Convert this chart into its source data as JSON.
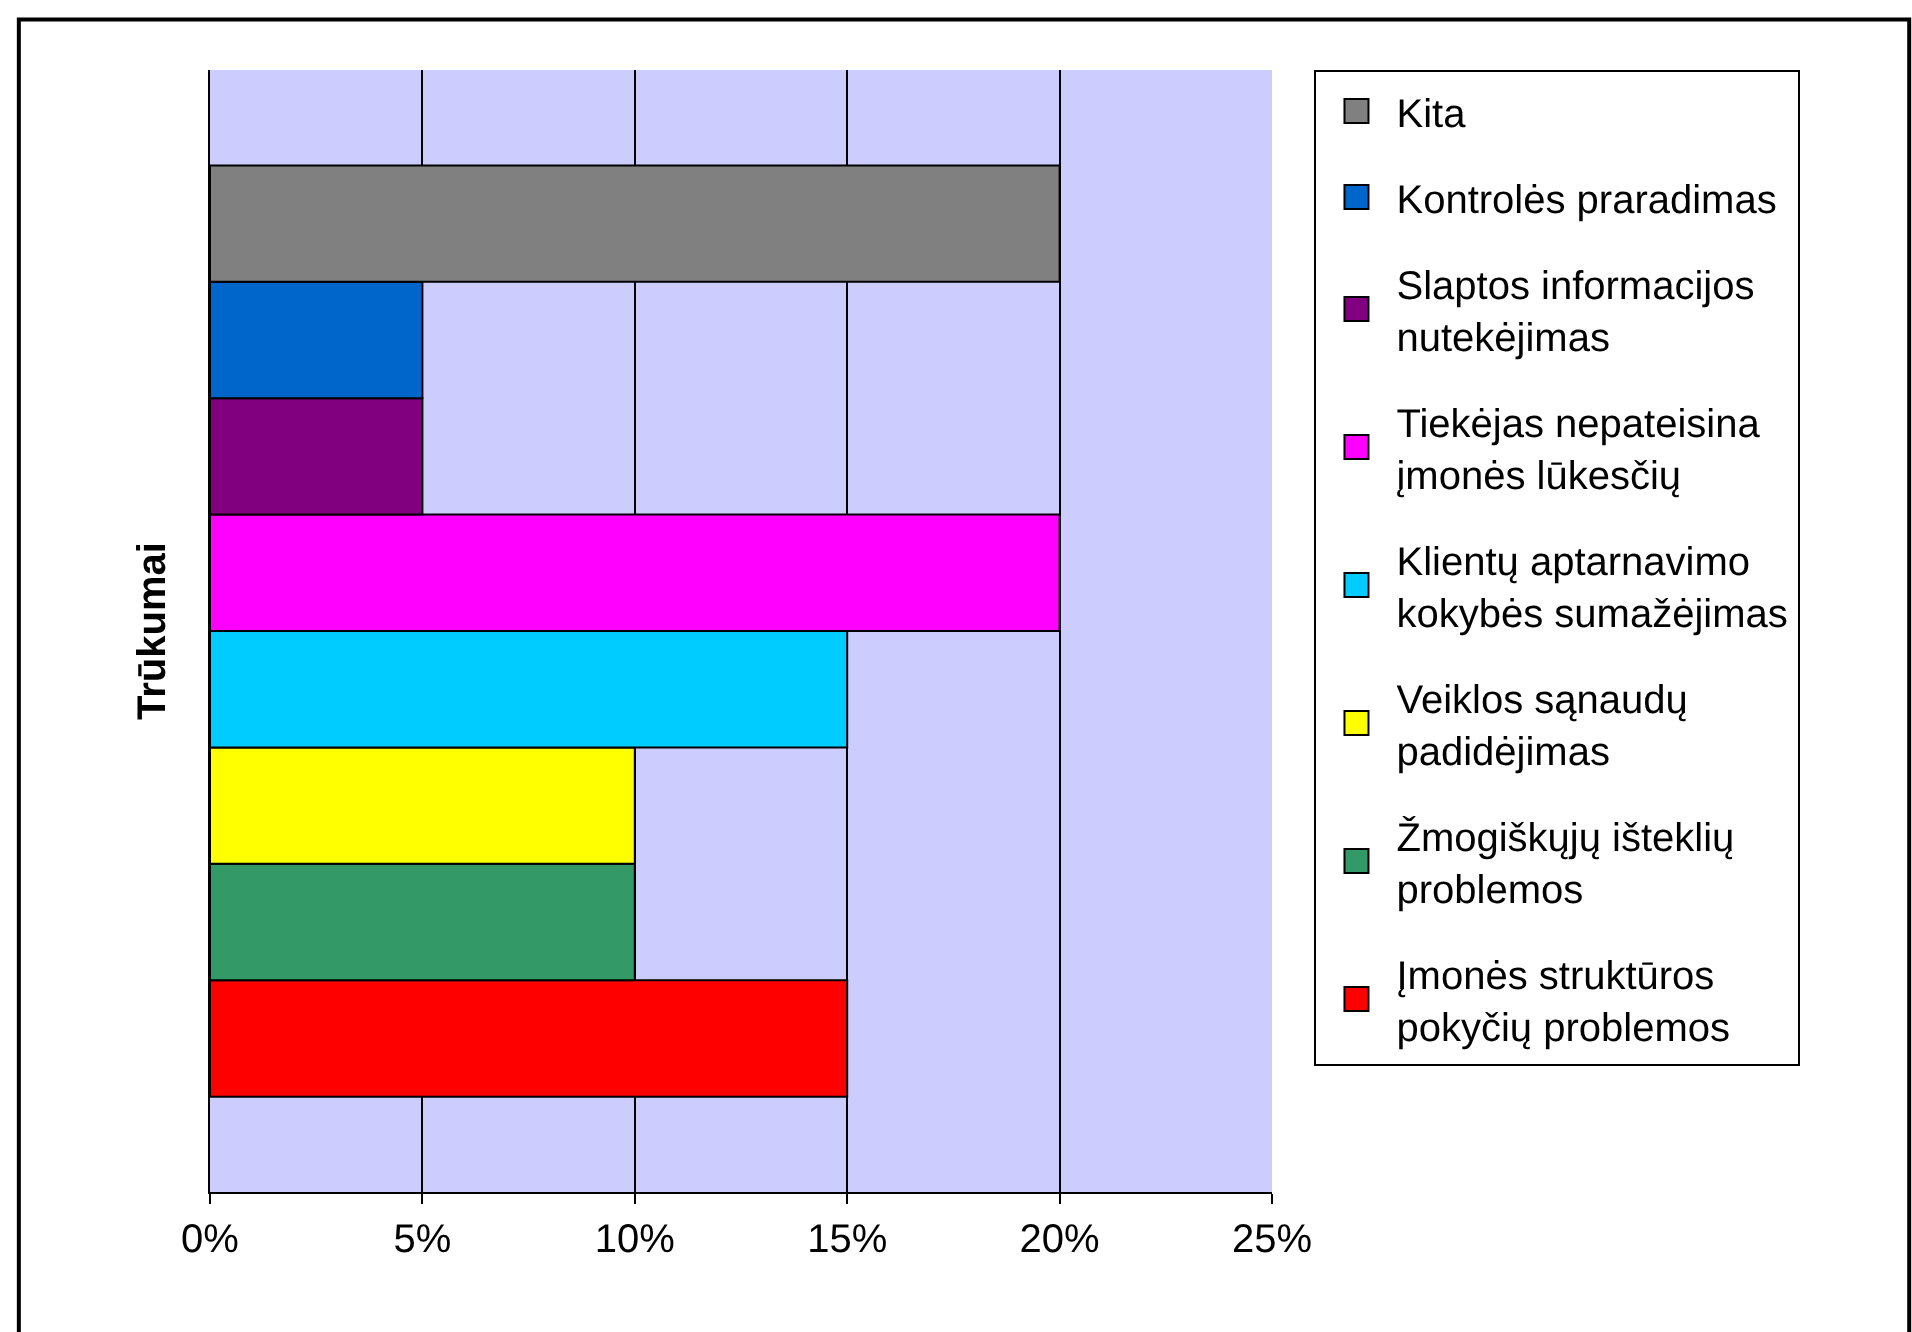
{
  "chart_data": {
    "type": "bar",
    "orientation": "horizontal",
    "ylabel": "Trūkumai",
    "categories": [
      null
    ],
    "series": [
      {
        "name": "Įmonės struktūros pokyčių problemos",
        "color": "#ff0000",
        "values": [
          15
        ]
      },
      {
        "name": "Žmogiškųjų išteklių problemos",
        "color": "#339966",
        "values": [
          10
        ]
      },
      {
        "name": "Veiklos sąnaudų padidėjimas",
        "color": "#ffff00",
        "values": [
          10
        ]
      },
      {
        "name": "Klientų aptarnavimo kokybės sumažėjimas",
        "color": "#00ccff",
        "values": [
          15
        ]
      },
      {
        "name": "Tiekėjas nepateisina įmonės lūkesčių",
        "color": "#ff00ff",
        "values": [
          20
        ]
      },
      {
        "name": "Slaptos informacijos nutekėjimas",
        "color": "#800080",
        "values": [
          5
        ]
      },
      {
        "name": "Kontrolės praradimas",
        "color": "#0066cc",
        "values": [
          5
        ]
      },
      {
        "name": "Kita",
        "color": "#808080",
        "values": [
          20
        ]
      }
    ],
    "xlim": [
      0,
      25
    ],
    "xticks": [
      {
        "value": 0,
        "label": "0%"
      },
      {
        "value": 5,
        "label": "5%"
      },
      {
        "value": 10,
        "label": "10%"
      },
      {
        "value": 15,
        "label": "15%"
      },
      {
        "value": 20,
        "label": "20%"
      },
      {
        "value": 25,
        "label": "25%"
      }
    ],
    "grid": "x",
    "legend": "right",
    "tick_labels": "x"
  }
}
